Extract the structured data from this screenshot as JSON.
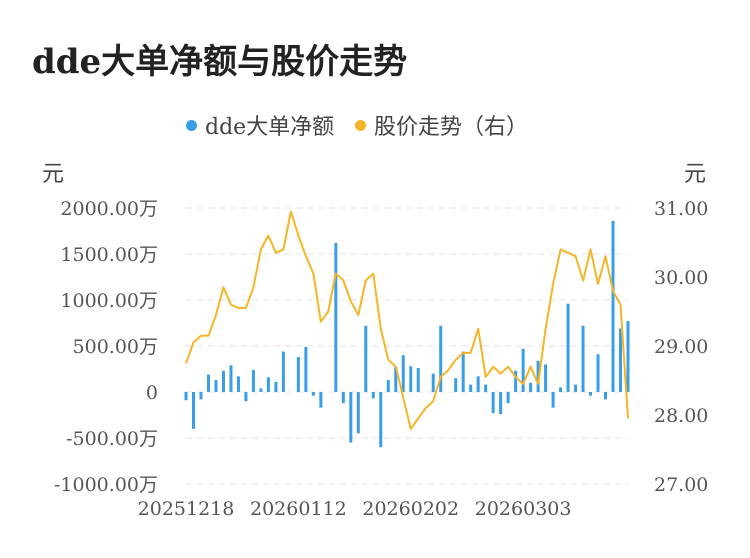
{
  "title": "dde大单净额与股价走势",
  "legend": {
    "items": [
      {
        "label": "dde大单净额",
        "color": "#3a9ee6"
      },
      {
        "label": "股价走势（右）",
        "color": "#f5b526"
      }
    ]
  },
  "axis_units": {
    "left": "元",
    "right": "元"
  },
  "chart_data": {
    "type": "bar+line",
    "title": "dde大单净额与股价走势",
    "x_tick_labels": [
      "20251218",
      "20260112",
      "20260202",
      "20260303"
    ],
    "left_axis": {
      "unit": "元",
      "ylim": [
        -1000,
        2000
      ],
      "tick_labels": [
        "2000.00万",
        "1500.00万",
        "1000.00万",
        "500.00万",
        "0",
        "-500.00万",
        "-1000.00万"
      ],
      "tick_values": [
        2000,
        1500,
        1000,
        500,
        0,
        -500,
        -1000
      ]
    },
    "right_axis": {
      "unit": "元",
      "ylim": [
        27.0,
        31.0
      ],
      "tick_labels": [
        "31.00",
        "30.00",
        "29.00",
        "28.00",
        "27.00"
      ],
      "tick_values": [
        31,
        30,
        29,
        28,
        27
      ]
    },
    "grid": true,
    "legend_position": "top-center",
    "series": [
      {
        "name": "dde大单净额",
        "type": "bar",
        "axis": "left",
        "color": "#3a9ee6",
        "values": [
          -90,
          -400,
          -80,
          190,
          130,
          230,
          290,
          170,
          -100,
          240,
          40,
          160,
          110,
          440,
          0,
          380,
          490,
          -40,
          -170,
          0,
          1620,
          -120,
          -550,
          -450,
          720,
          -70,
          -600,
          130,
          270,
          400,
          280,
          260,
          0,
          200,
          720,
          0,
          150,
          440,
          80,
          170,
          80,
          -230,
          -240,
          -120,
          230,
          470,
          100,
          340,
          300,
          -170,
          50,
          960,
          80,
          720,
          -40,
          410,
          -80,
          1860,
          690,
          770
        ]
      },
      {
        "name": "股价走势（右）",
        "type": "line",
        "axis": "right",
        "color": "#f5b526",
        "values": [
          28.75,
          29.05,
          29.15,
          29.15,
          29.45,
          29.85,
          29.6,
          29.55,
          29.55,
          29.85,
          30.4,
          30.6,
          30.35,
          30.4,
          30.95,
          30.6,
          30.3,
          30.05,
          29.35,
          29.5,
          30.05,
          29.95,
          29.65,
          29.45,
          29.95,
          30.05,
          29.25,
          28.8,
          28.7,
          28.25,
          27.8,
          27.95,
          28.1,
          28.2,
          28.55,
          28.65,
          28.8,
          28.9,
          28.9,
          29.25,
          28.55,
          28.7,
          28.6,
          28.7,
          28.55,
          28.45,
          28.7,
          28.45,
          29.25,
          29.9,
          30.4,
          30.35,
          30.3,
          29.95,
          30.4,
          29.9,
          30.3,
          29.8,
          29.6,
          27.95
        ]
      }
    ]
  }
}
